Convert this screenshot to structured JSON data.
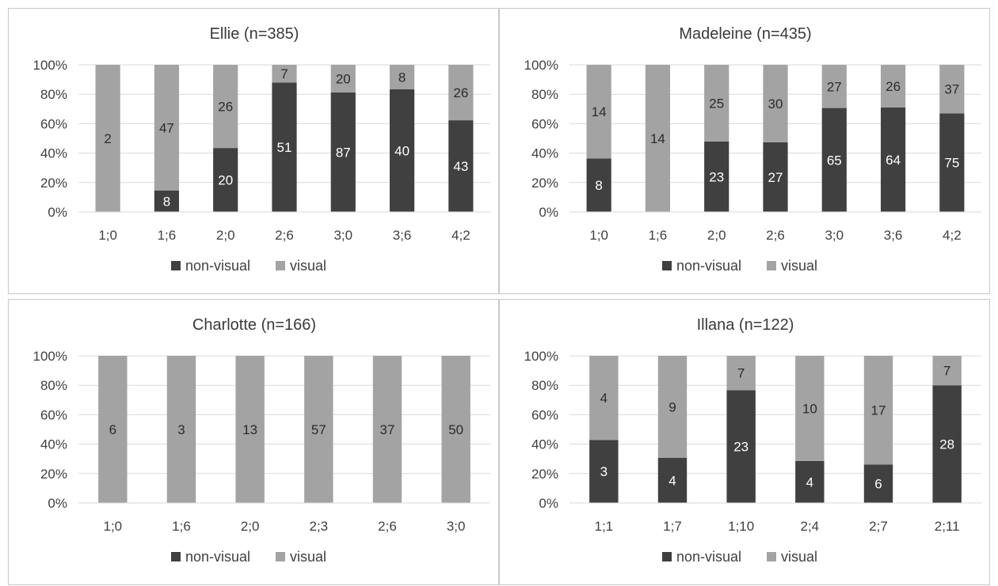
{
  "colors": {
    "non_visual": "#404040",
    "visual": "#a3a3a3",
    "grid": "#d9d9d9"
  },
  "chart_data": [
    {
      "type": "bar",
      "stacked": "percent",
      "title": "Ellie (n=385)",
      "categories": [
        "1;0",
        "1;6",
        "2;0",
        "2;6",
        "3;0",
        "3;6",
        "4;2"
      ],
      "series": [
        {
          "name": "non-visual",
          "values": [
            0,
            8,
            20,
            51,
            87,
            40,
            43
          ]
        },
        {
          "name": "visual",
          "values": [
            2,
            47,
            26,
            7,
            20,
            8,
            26
          ]
        }
      ],
      "y_ticks": [
        "0%",
        "20%",
        "40%",
        "60%",
        "80%",
        "100%"
      ],
      "ylim": [
        0,
        100
      ],
      "legend": "bottom",
      "grid": true
    },
    {
      "type": "bar",
      "stacked": "percent",
      "title": "Madeleine (n=435)",
      "categories": [
        "1;0",
        "1;6",
        "2;0",
        "2;6",
        "3;0",
        "3;6",
        "4;2"
      ],
      "series": [
        {
          "name": "non-visual",
          "values": [
            8,
            0,
            23,
            27,
            65,
            64,
            75
          ]
        },
        {
          "name": "visual",
          "values": [
            14,
            14,
            25,
            30,
            27,
            26,
            37
          ]
        }
      ],
      "y_ticks": [
        "0%",
        "20%",
        "40%",
        "60%",
        "80%",
        "100%"
      ],
      "ylim": [
        0,
        100
      ],
      "legend": "bottom",
      "grid": true
    },
    {
      "type": "bar",
      "stacked": "percent",
      "title": "Charlotte (n=166)",
      "categories": [
        "1;0",
        "1;6",
        "2;0",
        "2;3",
        "2;6",
        "3;0"
      ],
      "series": [
        {
          "name": "non-visual",
          "values": [
            0,
            0,
            0,
            0,
            0,
            0
          ]
        },
        {
          "name": "visual",
          "values": [
            6,
            3,
            13,
            57,
            37,
            50
          ]
        }
      ],
      "y_ticks": [
        "0%",
        "20%",
        "40%",
        "60%",
        "80%",
        "100%"
      ],
      "ylim": [
        0,
        100
      ],
      "legend": "bottom",
      "grid": true
    },
    {
      "type": "bar",
      "stacked": "percent",
      "title": "Illana (n=122)",
      "categories": [
        "1;1",
        "1;7",
        "1;10",
        "2;4",
        "2;7",
        "2;11"
      ],
      "series": [
        {
          "name": "non-visual",
          "values": [
            3,
            4,
            23,
            4,
            6,
            28
          ]
        },
        {
          "name": "visual",
          "values": [
            4,
            9,
            7,
            10,
            17,
            7
          ]
        }
      ],
      "y_ticks": [
        "0%",
        "20%",
        "40%",
        "60%",
        "80%",
        "100%"
      ],
      "ylim": [
        0,
        100
      ],
      "legend": "bottom",
      "grid": true
    }
  ]
}
